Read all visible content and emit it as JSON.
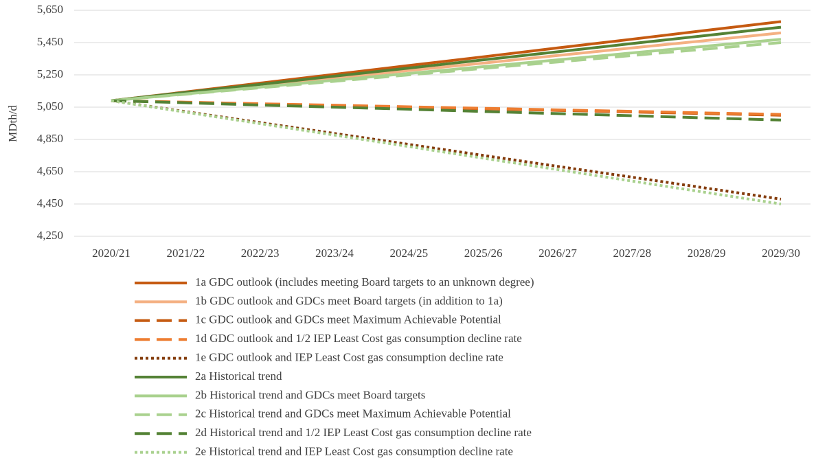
{
  "chart_data": {
    "type": "line",
    "y_label": "MDth/d",
    "categories": [
      "2020/21",
      "2021/22",
      "2022/23",
      "2023/24",
      "2024/25",
      "2025/26",
      "2026/27",
      "2027/28",
      "2028/29",
      "2029/30"
    ],
    "ylim": [
      4250,
      5650
    ],
    "yticks": [
      {
        "value": 4250,
        "label": "4,250"
      },
      {
        "value": 4450,
        "label": "4,450"
      },
      {
        "value": 4650,
        "label": "4,650"
      },
      {
        "value": 4850,
        "label": "4,850"
      },
      {
        "value": 5050,
        "label": "5,050"
      },
      {
        "value": 5250,
        "label": "5,250"
      },
      {
        "value": 5450,
        "label": "5,450"
      },
      {
        "value": 5650,
        "label": "5,650"
      }
    ],
    "grid": true,
    "legend": "bottom",
    "series": [
      {
        "name": "1a GDC outlook (includes meeting Board targets to an unknown degree)",
        "color": "#c55a11",
        "dash": "solid",
        "values": [
          5090,
          5144,
          5199,
          5253,
          5308,
          5362,
          5417,
          5471,
          5526,
          5580
        ]
      },
      {
        "name": "1b GDC outlook and GDCs meet Board targets (in addition to 1a)",
        "color": "#f4b183",
        "dash": "solid",
        "values": [
          5090,
          5137,
          5183,
          5230,
          5277,
          5323,
          5370,
          5417,
          5463,
          5510
        ]
      },
      {
        "name": "1c GDC outlook and GDCs meet Maximum Achievable Potential",
        "color": "#c55a11",
        "dash": "dash",
        "values": [
          5090,
          5080,
          5070,
          5060,
          5050,
          5040,
          5030,
          5020,
          5010,
          5000
        ]
      },
      {
        "name": "1d GDC outlook and 1/2 IEP Least Cost gas consumption decline rate",
        "color": "#ed7d31",
        "dash": "dash",
        "values": [
          5090,
          5081,
          5071,
          5062,
          5052,
          5043,
          5033,
          5024,
          5014,
          5005
        ]
      },
      {
        "name": "1e GDC outlook and IEP Least Cost gas consumption decline rate",
        "color": "#843c0c",
        "dash": "dot",
        "values": [
          5090,
          5022,
          4954,
          4887,
          4819,
          4751,
          4683,
          4616,
          4548,
          4480
        ]
      },
      {
        "name": "2a Historical trend",
        "color": "#548235",
        "dash": "solid",
        "values": [
          5090,
          5141,
          5191,
          5242,
          5292,
          5343,
          5393,
          5444,
          5494,
          5545
        ]
      },
      {
        "name": "2b Historical trend and GDCs meet Board targets",
        "color": "#a9d18e",
        "dash": "solid",
        "values": [
          5090,
          5132,
          5174,
          5217,
          5259,
          5301,
          5343,
          5386,
          5428,
          5470
        ]
      },
      {
        "name": "2c Historical trend and GDCs meet Maximum Achievable Potential",
        "color": "#a9d18e",
        "dash": "dash",
        "values": [
          5090,
          5130,
          5170,
          5210,
          5250,
          5290,
          5330,
          5370,
          5410,
          5450
        ]
      },
      {
        "name": "2d Historical trend and 1/2 IEP Least Cost gas consumption decline rate",
        "color": "#548235",
        "dash": "dash",
        "values": [
          5090,
          5077,
          5063,
          5050,
          5037,
          5023,
          5010,
          4997,
          4983,
          4970
        ]
      },
      {
        "name": "2e Historical trend and IEP Least Cost gas consumption decline rate",
        "color": "#a9d18e",
        "dash": "dot",
        "values": [
          5090,
          5019,
          4948,
          4877,
          4806,
          4734,
          4663,
          4592,
          4521,
          4450
        ]
      }
    ]
  }
}
